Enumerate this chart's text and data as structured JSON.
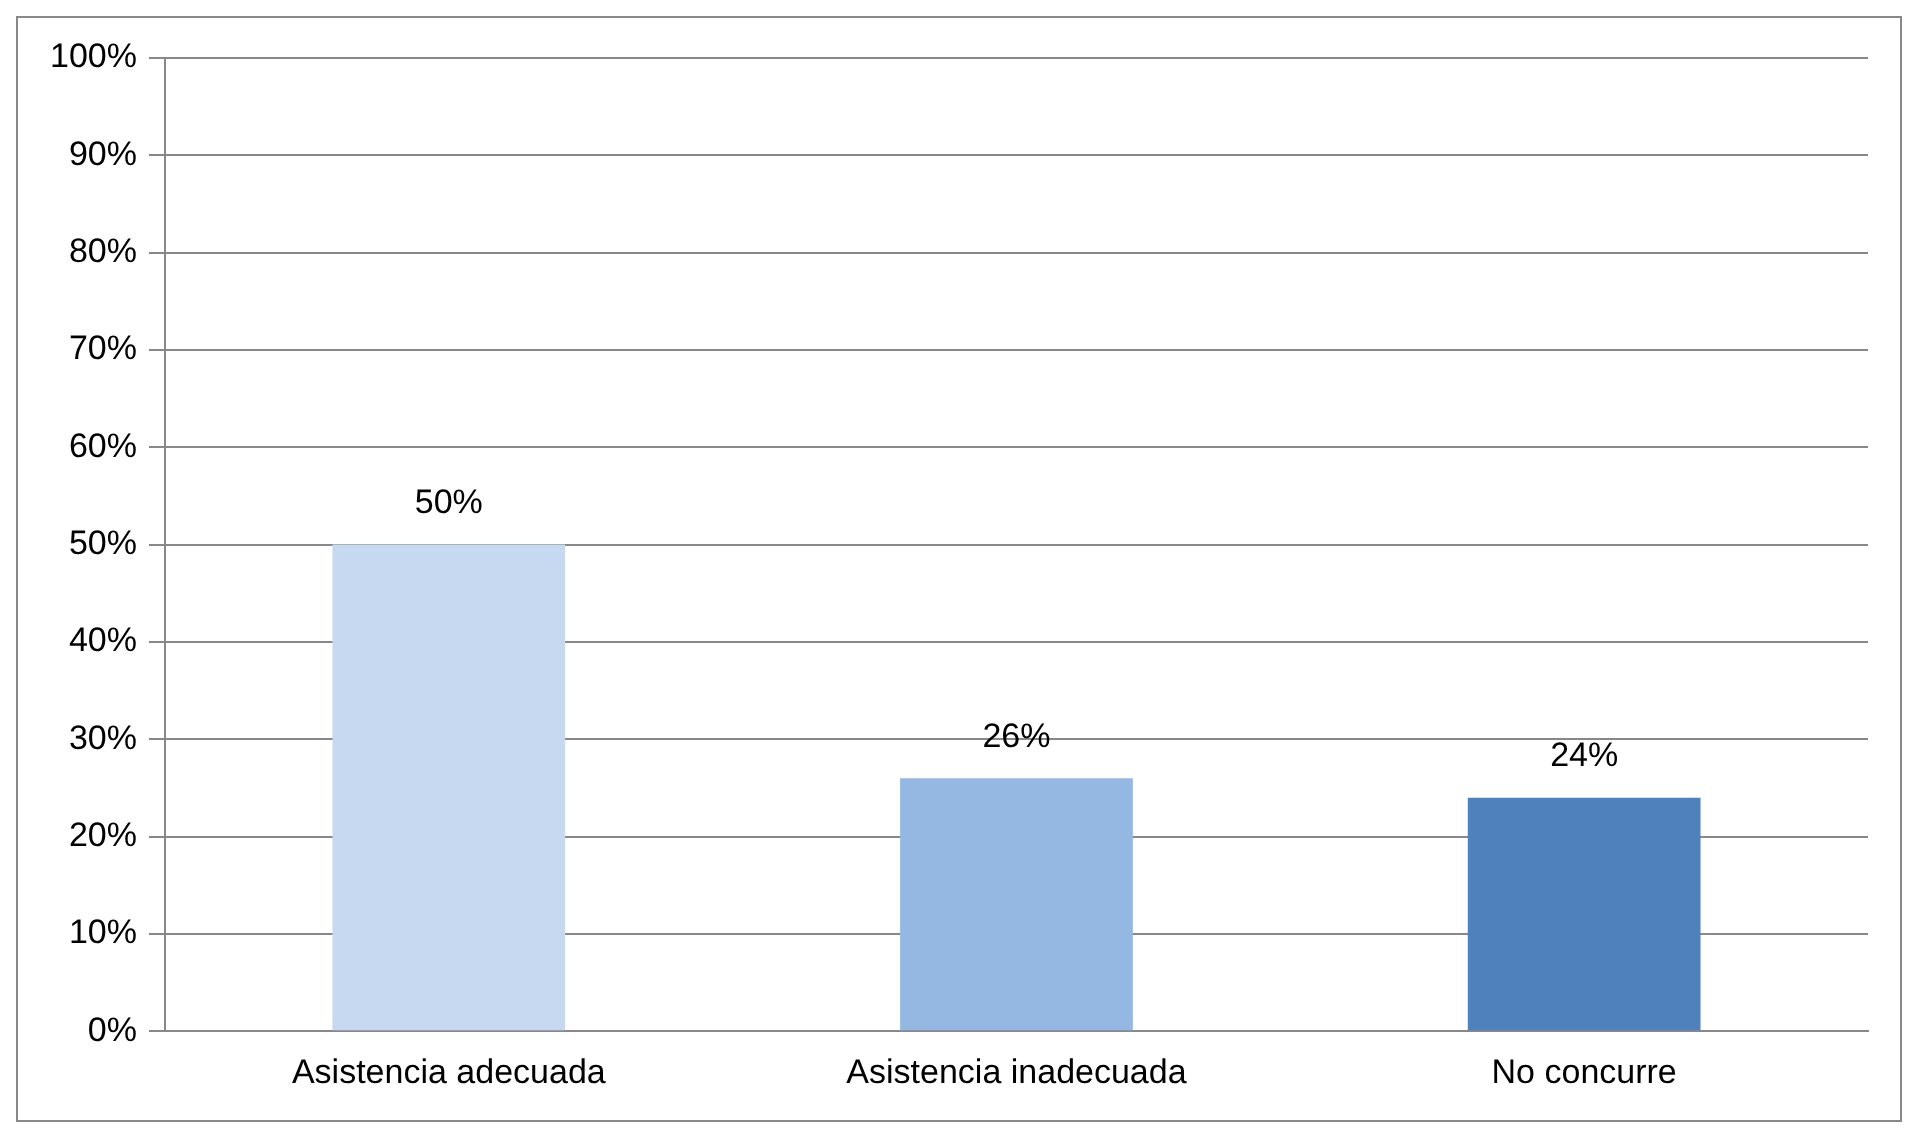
{
  "chart_data": {
    "type": "bar",
    "categories": [
      "Asistencia adecuada",
      "Asistencia inadecuada",
      "No concurre"
    ],
    "values": [
      50,
      26,
      24
    ],
    "colors": [
      "#c6d9f1",
      "#95b8e3",
      "#4f81bd"
    ],
    "value_labels": [
      "50%",
      "26%",
      "24%"
    ],
    "ylim": [
      0,
      100
    ],
    "yticks": [
      {
        "value": 0,
        "label": "0%"
      },
      {
        "value": 10,
        "label": "10%"
      },
      {
        "value": 20,
        "label": "20%"
      },
      {
        "value": 30,
        "label": "30%"
      },
      {
        "value": 40,
        "label": "40%"
      },
      {
        "value": 50,
        "label": "50%"
      },
      {
        "value": 60,
        "label": "60%"
      },
      {
        "value": 70,
        "label": "70%"
      },
      {
        "value": 80,
        "label": "80%"
      },
      {
        "value": 90,
        "label": "90%"
      },
      {
        "value": 100,
        "label": "100%"
      }
    ],
    "grid": "y",
    "legend": false
  }
}
